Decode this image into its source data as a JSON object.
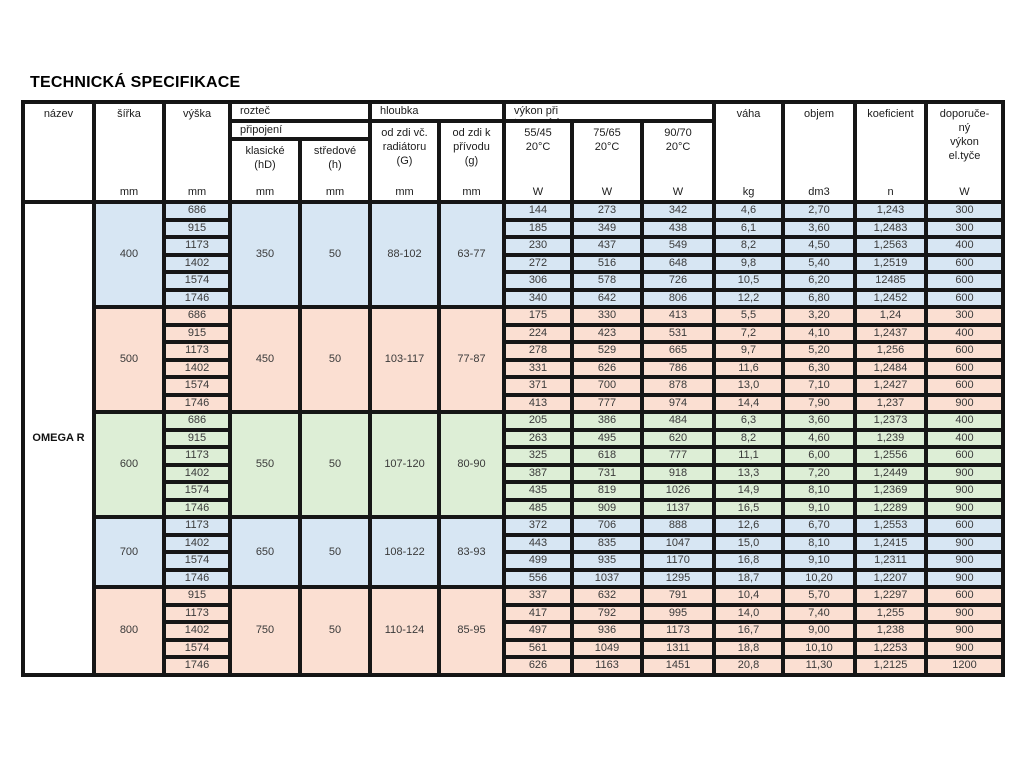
{
  "page": {
    "title": "TECHNICKÁ SPECIFIKACE"
  },
  "table": {
    "product_name": "OMEGA R",
    "header": {
      "nazev": "název",
      "sirka": "šířka",
      "vyska": "výška",
      "roztec": "rozteč",
      "pripojeni": "připojení",
      "klasicke": "klasické\n(hD)",
      "stredove": "středové\n(h)",
      "hloubka": "hloubka",
      "od_zdi_vc": "od zdi vč.\nradiátoru\n(G)",
      "od_zdi_k": "od zdi k\npřívodu\n(g)",
      "vykon": "výkon při\ntop. spádu",
      "t5545": "55/45\n20°C",
      "t7565": "75/65\n20°C",
      "t9070": "90/70\n20°C",
      "vaha": "váha",
      "objem": "objem",
      "koeficient": "koeficient",
      "doporuceny": "doporuče-\nný\nvýkon\nel.tyče",
      "units": {
        "mm": "mm",
        "w": "W",
        "kg": "kg",
        "dm3": "dm3",
        "n": "n"
      }
    },
    "groups": [
      {
        "fill": "#d7e6f3",
        "sirka": "400",
        "klasicke": "350",
        "stredove": "50",
        "hloubka_g": "88-102",
        "hloubka_p": "63-77",
        "rows": [
          {
            "vyska": "686",
            "values": [
              "144",
              "273",
              "342",
              "4,6",
              "2,70",
              "1,243",
              "300"
            ]
          },
          {
            "vyska": "915",
            "values": [
              "185",
              "349",
              "438",
              "6,1",
              "3,60",
              "1,2483",
              "300"
            ]
          },
          {
            "vyska": "1173",
            "values": [
              "230",
              "437",
              "549",
              "8,2",
              "4,50",
              "1,2563",
              "400"
            ]
          },
          {
            "vyska": "1402",
            "values": [
              "272",
              "516",
              "648",
              "9,8",
              "5,40",
              "1,2519",
              "600"
            ]
          },
          {
            "vyska": "1574",
            "values": [
              "306",
              "578",
              "726",
              "10,5",
              "6,20",
              "12485",
              "600"
            ]
          },
          {
            "vyska": "1746",
            "values": [
              "340",
              "642",
              "806",
              "12,2",
              "6,80",
              "1,2452",
              "600"
            ]
          }
        ]
      },
      {
        "fill": "#fbdfd2",
        "sirka": "500",
        "klasicke": "450",
        "stredove": "50",
        "hloubka_g": "103-117",
        "hloubka_p": "77-87",
        "rows": [
          {
            "vyska": "686",
            "values": [
              "175",
              "330",
              "413",
              "5,5",
              "3,20",
              "1,24",
              "300"
            ]
          },
          {
            "vyska": "915",
            "values": [
              "224",
              "423",
              "531",
              "7,2",
              "4,10",
              "1,2437",
              "400"
            ]
          },
          {
            "vyska": "1173",
            "values": [
              "278",
              "529",
              "665",
              "9,7",
              "5,20",
              "1,256",
              "600"
            ]
          },
          {
            "vyska": "1402",
            "values": [
              "331",
              "626",
              "786",
              "11,6",
              "6,30",
              "1,2484",
              "600"
            ]
          },
          {
            "vyska": "1574",
            "values": [
              "371",
              "700",
              "878",
              "13,0",
              "7,10",
              "1,2427",
              "600"
            ]
          },
          {
            "vyska": "1746",
            "values": [
              "413",
              "777",
              "974",
              "14,4",
              "7,90",
              "1,237",
              "900"
            ]
          }
        ]
      },
      {
        "fill": "#ddeed6",
        "sirka": "600",
        "klasicke": "550",
        "stredove": "50",
        "hloubka_g": "107-120",
        "hloubka_p": "80-90",
        "rows": [
          {
            "vyska": "686",
            "values": [
              "205",
              "386",
              "484",
              "6,3",
              "3,60",
              "1,2373",
              "400"
            ]
          },
          {
            "vyska": "915",
            "values": [
              "263",
              "495",
              "620",
              "8,2",
              "4,60",
              "1,239",
              "400"
            ]
          },
          {
            "vyska": "1173",
            "values": [
              "325",
              "618",
              "777",
              "11,1",
              "6,00",
              "1,2556",
              "600"
            ]
          },
          {
            "vyska": "1402",
            "values": [
              "387",
              "731",
              "918",
              "13,3",
              "7,20",
              "1,2449",
              "900"
            ]
          },
          {
            "vyska": "1574",
            "values": [
              "435",
              "819",
              "1026",
              "14,9",
              "8,10",
              "1,2369",
              "900"
            ]
          },
          {
            "vyska": "1746",
            "values": [
              "485",
              "909",
              "1137",
              "16,5",
              "9,10",
              "1,2289",
              "900"
            ]
          }
        ]
      },
      {
        "fill": "#d7e6f3",
        "sirka": "700",
        "klasicke": "650",
        "stredove": "50",
        "hloubka_g": "108-122",
        "hloubka_p": "83-93",
        "rows": [
          {
            "vyska": "1173",
            "values": [
              "372",
              "706",
              "888",
              "12,6",
              "6,70",
              "1,2553",
              "600"
            ]
          },
          {
            "vyska": "1402",
            "values": [
              "443",
              "835",
              "1047",
              "15,0",
              "8,10",
              "1,2415",
              "900"
            ]
          },
          {
            "vyska": "1574",
            "values": [
              "499",
              "935",
              "1170",
              "16,8",
              "9,10",
              "1,2311",
              "900"
            ]
          },
          {
            "vyska": "1746",
            "values": [
              "556",
              "1037",
              "1295",
              "18,7",
              "10,20",
              "1,2207",
              "900"
            ]
          }
        ]
      },
      {
        "fill": "#fbdfd2",
        "sirka": "800",
        "klasicke": "750",
        "stredove": "50",
        "hloubka_g": "110-124",
        "hloubka_p": "85-95",
        "rows": [
          {
            "vyska": "915",
            "values": [
              "337",
              "632",
              "791",
              "10,4",
              "5,70",
              "1,2297",
              "600"
            ]
          },
          {
            "vyska": "1173",
            "values": [
              "417",
              "792",
              "995",
              "14,0",
              "7,40",
              "1,255",
              "900"
            ]
          },
          {
            "vyska": "1402",
            "values": [
              "497",
              "936",
              "1173",
              "16,7",
              "9,00",
              "1,238",
              "900"
            ]
          },
          {
            "vyska": "1574",
            "values": [
              "561",
              "1049",
              "1311",
              "18,8",
              "10,10",
              "1,2253",
              "900"
            ]
          },
          {
            "vyska": "1746",
            "values": [
              "626",
              "1163",
              "1451",
              "20,8",
              "11,30",
              "1,2125",
              "1200"
            ]
          }
        ]
      }
    ]
  }
}
